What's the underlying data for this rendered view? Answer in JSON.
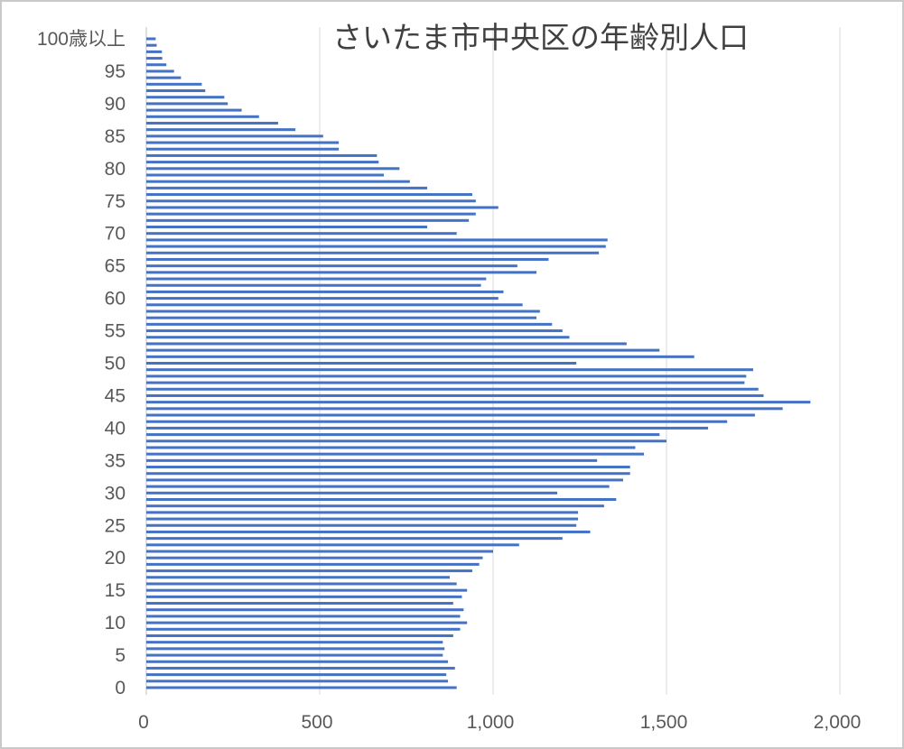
{
  "chart_data": {
    "type": "bar",
    "orientation": "horizontal",
    "title": "さいたま市中央区の年齢別人口",
    "xlabel": "",
    "ylabel": "",
    "xlim": [
      0,
      2000
    ],
    "x_ticks": [
      "0",
      "500",
      "1,000",
      "1,500",
      "2,000"
    ],
    "y_tick_labels": [
      "0",
      "5",
      "10",
      "15",
      "20",
      "25",
      "30",
      "35",
      "40",
      "45",
      "50",
      "55",
      "60",
      "65",
      "70",
      "75",
      "80",
      "85",
      "90",
      "95",
      "100歳以上"
    ],
    "grid": "vertical",
    "legend": "none",
    "bar_color": "#4472c4",
    "categories": [
      "0",
      "1",
      "2",
      "3",
      "4",
      "5",
      "6",
      "7",
      "8",
      "9",
      "10",
      "11",
      "12",
      "13",
      "14",
      "15",
      "16",
      "17",
      "18",
      "19",
      "20",
      "21",
      "22",
      "23",
      "24",
      "25",
      "26",
      "27",
      "28",
      "29",
      "30",
      "31",
      "32",
      "33",
      "34",
      "35",
      "36",
      "37",
      "38",
      "39",
      "40",
      "41",
      "42",
      "43",
      "44",
      "45",
      "46",
      "47",
      "48",
      "49",
      "50",
      "51",
      "52",
      "53",
      "54",
      "55",
      "56",
      "57",
      "58",
      "59",
      "60",
      "61",
      "62",
      "63",
      "64",
      "65",
      "66",
      "67",
      "68",
      "69",
      "70",
      "71",
      "72",
      "73",
      "74",
      "75",
      "76",
      "77",
      "78",
      "79",
      "80",
      "81",
      "82",
      "83",
      "84",
      "85",
      "86",
      "87",
      "88",
      "89",
      "90",
      "91",
      "92",
      "93",
      "94",
      "95",
      "96",
      "97",
      "98",
      "99",
      "100歳以上"
    ],
    "values": [
      895,
      870,
      865,
      890,
      870,
      855,
      860,
      855,
      885,
      905,
      925,
      905,
      915,
      885,
      910,
      925,
      895,
      875,
      940,
      960,
      970,
      1000,
      1075,
      1200,
      1280,
      1240,
      1245,
      1245,
      1320,
      1355,
      1185,
      1335,
      1375,
      1395,
      1395,
      1300,
      1435,
      1410,
      1500,
      1480,
      1620,
      1675,
      1755,
      1835,
      1915,
      1780,
      1765,
      1725,
      1730,
      1750,
      1240,
      1580,
      1480,
      1385,
      1220,
      1200,
      1170,
      1125,
      1135,
      1085,
      1015,
      1030,
      965,
      980,
      1125,
      1070,
      1160,
      1305,
      1325,
      1330,
      895,
      810,
      930,
      950,
      1015,
      950,
      940,
      810,
      760,
      685,
      730,
      670,
      665,
      555,
      555,
      510,
      430,
      380,
      325,
      275,
      235,
      225,
      170,
      160,
      100,
      80,
      58,
      46,
      45,
      30,
      27
    ]
  }
}
